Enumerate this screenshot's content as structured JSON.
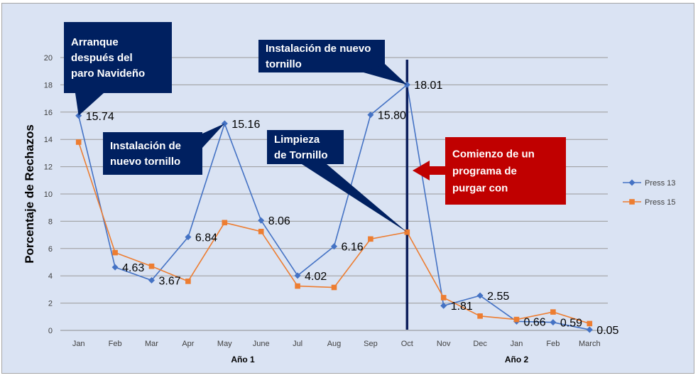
{
  "chart_data": {
    "type": "line",
    "title": "",
    "xlabel": "",
    "ylabel": "Porcentaje de Rechazos",
    "ylim": [
      0,
      20
    ],
    "yticks": [
      0,
      2,
      4,
      6,
      8,
      10,
      12,
      14,
      16,
      18,
      20
    ],
    "grid": "horizontal",
    "legend_position": "right",
    "categories": [
      "Jan",
      "Feb",
      "Mar",
      "Apr",
      "May",
      "June",
      "Jul",
      "Aug",
      "Sep",
      "Oct",
      "Nov",
      "Dec",
      "Jan",
      "Feb",
      "March"
    ],
    "groups": [
      {
        "label": "Año 1",
        "from": 0,
        "to": 9
      },
      {
        "label": "Año 2",
        "from": 10,
        "to": 14
      }
    ],
    "series": [
      {
        "name": "Press 13",
        "color": "#4472c4",
        "marker": "diamond",
        "values": [
          15.74,
          4.63,
          3.67,
          6.84,
          15.16,
          8.06,
          4.02,
          6.16,
          15.8,
          18.01,
          1.81,
          2.55,
          0.66,
          0.59,
          0.05
        ],
        "labels": [
          "15.74",
          "4.63",
          "3.67",
          "6.84",
          "15.16",
          "8.06",
          "4.02",
          "6.16",
          "15.80",
          "18.01",
          "1.81",
          "2.55",
          "0.66",
          "0.59",
          "0.05"
        ]
      },
      {
        "name": "Press 15",
        "color": "#ed7d31",
        "marker": "square",
        "values": [
          13.8,
          5.7,
          4.7,
          3.6,
          7.9,
          7.25,
          3.25,
          3.15,
          6.7,
          7.2,
          2.4,
          1.05,
          0.8,
          1.35,
          0.5
        ]
      }
    ],
    "reference_line": {
      "at_category": "Oct",
      "color": "#0d1f5c"
    },
    "annotations": [
      {
        "text": [
          "Arranque",
          "después del",
          "paro Navideño"
        ],
        "color": "#002060",
        "points_to": {
          "category": "Jan",
          "value": 15.74
        }
      },
      {
        "text": [
          "Instalación de",
          "nuevo tornillo"
        ],
        "color": "#002060",
        "points_to": {
          "category": "May",
          "value": 15.16
        }
      },
      {
        "text": [
          "Limpieza",
          "de Tornillo"
        ],
        "color": "#002060",
        "points_to": {
          "category": "Oct",
          "value": 7.2
        }
      },
      {
        "text": [
          "Instalación de nuevo",
          "tornillo"
        ],
        "color": "#002060",
        "points_to": {
          "category": "Oct",
          "value": 18.01
        }
      },
      {
        "text": [
          "Comienzo de un",
          "programa de",
          "purgar con"
        ],
        "color": "#c00000",
        "arrow": "left"
      }
    ]
  }
}
